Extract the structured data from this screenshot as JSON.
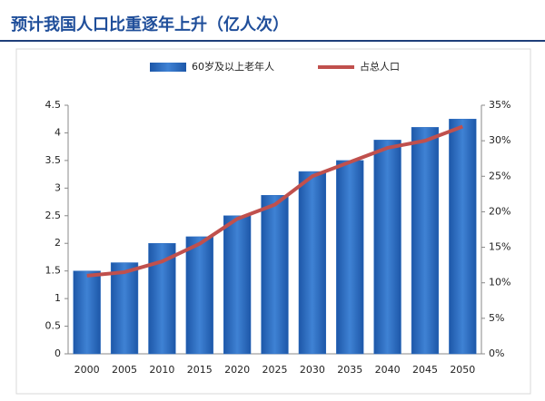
{
  "chart_data": {
    "type": "bar-line",
    "title": "预计我国人口比重逐年上升（亿人次）",
    "categories": [
      "2000",
      "2005",
      "2010",
      "2015",
      "2020",
      "2025",
      "2030",
      "2035",
      "2040",
      "2045",
      "2050"
    ],
    "series": [
      {
        "name": "60岁及以上老年人",
        "type": "bar",
        "color": "#2f6fc1",
        "values": [
          1.5,
          1.65,
          2.0,
          2.12,
          2.5,
          2.87,
          3.3,
          3.5,
          3.87,
          4.1,
          4.25
        ]
      },
      {
        "name": "占总人口",
        "type": "line",
        "axis": "y2",
        "color": "#c0504d",
        "values": [
          11,
          11.5,
          13,
          15.5,
          19,
          21,
          25,
          27,
          29,
          30,
          32
        ]
      }
    ],
    "ylim": [
      0,
      4.5
    ],
    "yticks": [
      0,
      0.5,
      1,
      1.5,
      2,
      2.5,
      3,
      3.5,
      4,
      4.5
    ],
    "y2lim": [
      0,
      35
    ],
    "y2ticks": [
      {
        "value": 0,
        "label": "0%"
      },
      {
        "value": 5,
        "label": "5%"
      },
      {
        "value": 10,
        "label": "10%"
      },
      {
        "value": 15,
        "label": "15%"
      },
      {
        "value": 20,
        "label": "20%"
      },
      {
        "value": 25,
        "label": "25%"
      },
      {
        "value": 30,
        "label": "30%"
      },
      {
        "value": 35,
        "label": "35%"
      }
    ],
    "legend": "top"
  }
}
